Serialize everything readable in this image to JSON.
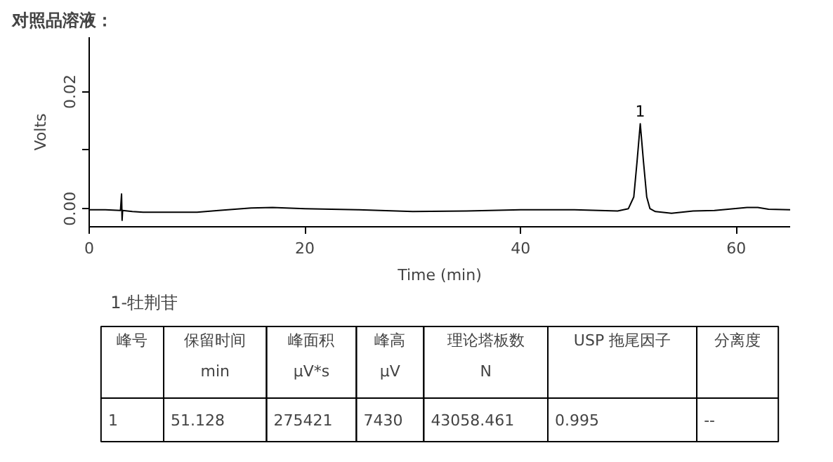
{
  "chart_data": {
    "type": "line",
    "title": "对照品溶液：",
    "xlabel": "Time (min)",
    "ylabel": "Volts",
    "xlim": [
      0,
      65
    ],
    "ylim": [
      -0.0031,
      0.0293
    ],
    "xticks": [
      0,
      20,
      40,
      60
    ],
    "yticks": [
      {
        "value": 0,
        "label": "0.00"
      },
      {
        "value": 0.01,
        "label": null
      },
      {
        "value": 0.02,
        "label": "0.02"
      }
    ],
    "series": [
      {
        "color": "#000000",
        "x": [
          0,
          1.5,
          2.9,
          3.0,
          3.05,
          3.1,
          4,
          5,
          10,
          12,
          15,
          17,
          20,
          25,
          30,
          35,
          40,
          45,
          49,
          50,
          50.5,
          50.8,
          51.1,
          51.4,
          51.7,
          52,
          52.5,
          54,
          56,
          58,
          61,
          62,
          63,
          65
        ],
        "values": [
          -0.0002,
          -0.0002,
          -0.0003,
          0.0025,
          -0.002,
          -0.0003,
          -0.0005,
          -0.0006,
          -0.0006,
          -0.0003,
          0.0001,
          0.0002,
          0.0,
          -0.0002,
          -0.0005,
          -0.0004,
          -0.0002,
          -0.0002,
          -0.0004,
          0.0,
          0.002,
          0.008,
          0.0145,
          0.008,
          0.002,
          0.0,
          -0.0005,
          -0.0008,
          -0.0004,
          -0.0003,
          0.0002,
          0.0002,
          -0.0001,
          -0.0002
        ]
      }
    ],
    "grid": false,
    "marker": "none",
    "line_style": "solid",
    "annotations": [
      "1",
      "1-牡荆苷",
      "峰号",
      "保留时间\nmin",
      "峰面积\nμV*s",
      "峰高\nμV",
      "理论塔板数\nN",
      "USP 拖尾因子",
      "分离度",
      "1",
      "51.128",
      "275421",
      "7430",
      "43058.461",
      "0.995",
      "--"
    ]
  }
}
